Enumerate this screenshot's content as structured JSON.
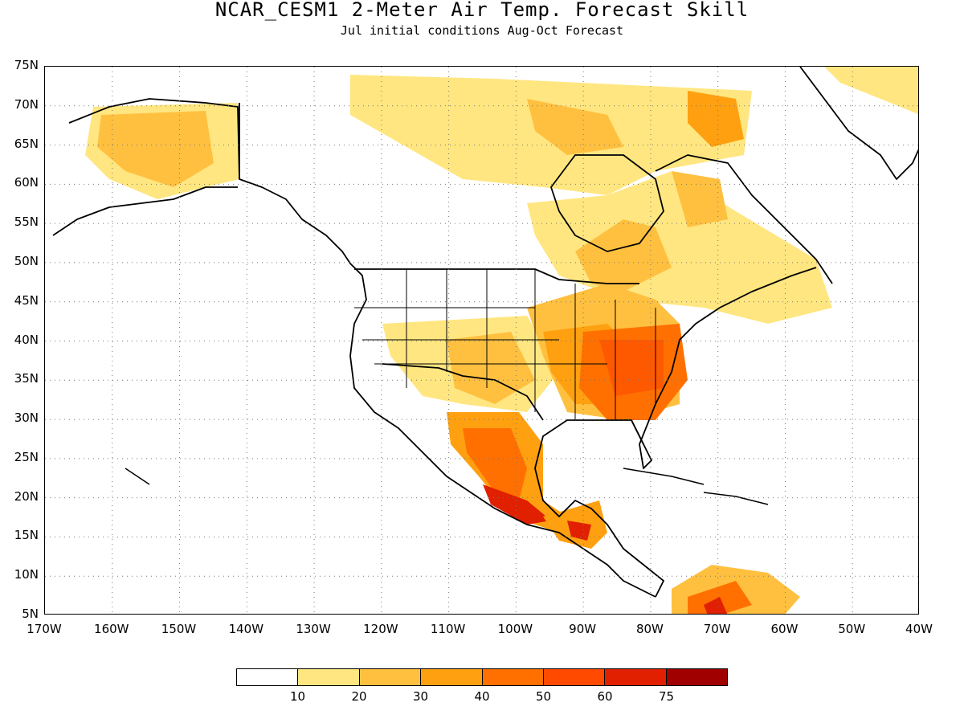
{
  "title": "NCAR_CESM1 2-Meter Air Temp. Forecast Skill",
  "subtitle": "Jul initial conditions  Aug-Oct Forecast",
  "map": {
    "lon_range": [
      -170,
      -40
    ],
    "lat_range": [
      5,
      75
    ],
    "lat_labels": [
      "75N",
      "70N",
      "65N",
      "60N",
      "55N",
      "50N",
      "45N",
      "40N",
      "35N",
      "30N",
      "25N",
      "20N",
      "15N",
      "10N",
      "5N"
    ],
    "lon_labels": [
      "170W",
      "160W",
      "150W",
      "140W",
      "130W",
      "120W",
      "110W",
      "100W",
      "90W",
      "80W",
      "70W",
      "60W",
      "50W",
      "40W"
    ],
    "gridlines": "dotted"
  },
  "colorbar": {
    "labels": [
      "10",
      "20",
      "30",
      "40",
      "50",
      "60",
      "75"
    ],
    "colors": [
      "#ffffff",
      "#ffe680",
      "#ffc040",
      "#ffa010",
      "#ff7000",
      "#ff4a00",
      "#e02000",
      "#a00000"
    ]
  }
}
